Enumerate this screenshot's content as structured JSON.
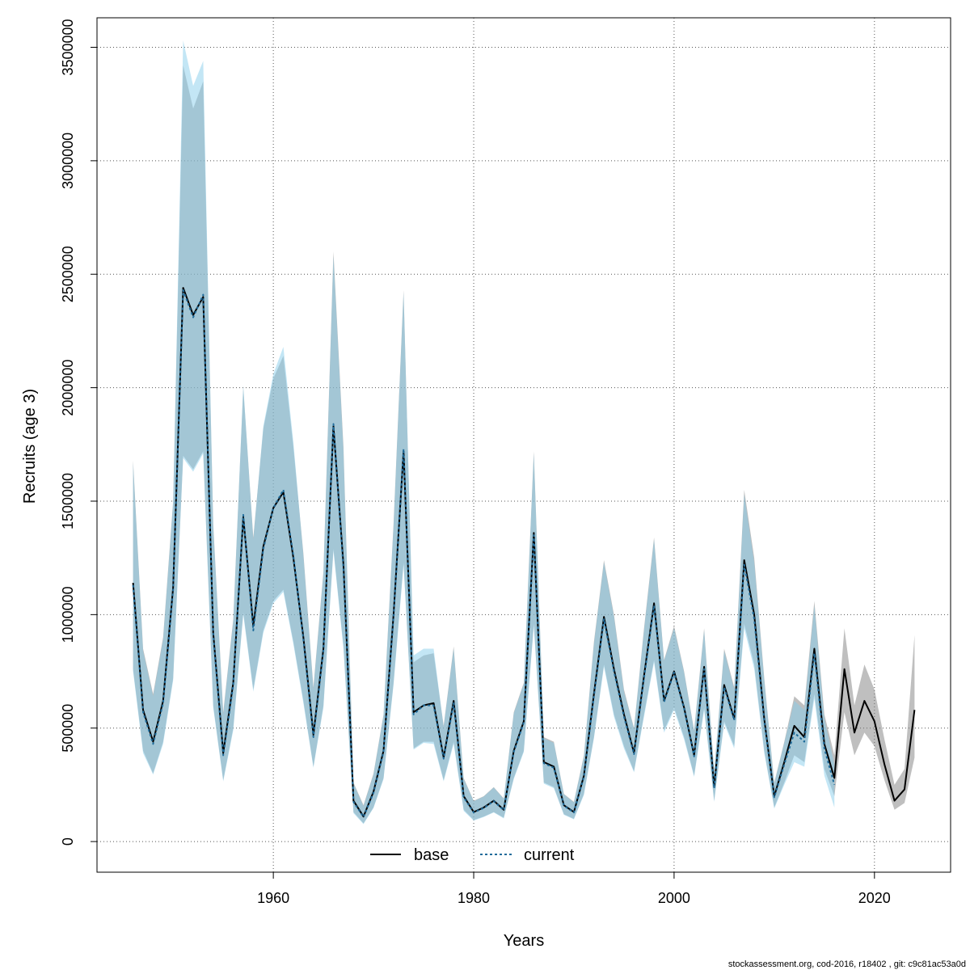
{
  "chart_data": {
    "type": "line",
    "title": "",
    "xlabel": "Years",
    "ylabel": "Recruits (age 3)",
    "xlim": [
      1942.4,
      2027.6
    ],
    "ylim": [
      -135000,
      3630000
    ],
    "x_ticks": [
      1960,
      1980,
      2000,
      2020
    ],
    "x_tick_labels": [
      "1960",
      "1980",
      "2000",
      "2020"
    ],
    "y_ticks": [
      0,
      500000,
      1000000,
      1500000,
      2000000,
      2500000,
      3000000,
      3500000
    ],
    "y_tick_labels": [
      "0",
      "500000",
      "1000000",
      "1500000",
      "2000000",
      "2500000",
      "3000000",
      "3500000"
    ],
    "grid": true,
    "legend_position": "bottom-center",
    "footer": "stockassessment.org, cod-2016, r18402 , git: c9c81ac53a0d",
    "colors": {
      "base_line": "#000000",
      "current_line": "#1f6b9a",
      "base_band": "#7f7f7f",
      "current_band": "#87ceeb"
    },
    "series": [
      {
        "name": "base",
        "x": [
          1946,
          1947,
          1948,
          1949,
          1950,
          1951,
          1952,
          1953,
          1954,
          1955,
          1956,
          1957,
          1958,
          1959,
          1960,
          1961,
          1962,
          1963,
          1964,
          1965,
          1966,
          1967,
          1968,
          1969,
          1970,
          1971,
          1972,
          1973,
          1974,
          1975,
          1976,
          1977,
          1978,
          1979,
          1980,
          1981,
          1982,
          1983,
          1984,
          1985,
          1986,
          1987,
          1988,
          1989,
          1990,
          1991,
          1992,
          1993,
          1994,
          1995,
          1996,
          1997,
          1998,
          1999,
          2000,
          2001,
          2002,
          2003,
          2004,
          2005,
          2006,
          2007,
          2008,
          2009,
          2010,
          2011,
          2012,
          2013,
          2014,
          2015,
          2016,
          2017,
          2018,
          2019,
          2020,
          2021,
          2022,
          2023,
          2024
        ],
        "values": [
          1140000,
          580000,
          440000,
          620000,
          1120000,
          2440000,
          2320000,
          2400000,
          920000,
          390000,
          700000,
          1430000,
          950000,
          1300000,
          1470000,
          1540000,
          1250000,
          900000,
          470000,
          850000,
          1830000,
          1220000,
          180000,
          110000,
          220000,
          400000,
          1000000,
          1720000,
          570000,
          600000,
          610000,
          370000,
          620000,
          200000,
          130000,
          150000,
          180000,
          140000,
          400000,
          530000,
          1360000,
          350000,
          330000,
          160000,
          130000,
          290000,
          650000,
          990000,
          760000,
          560000,
          390000,
          730000,
          1050000,
          620000,
          750000,
          590000,
          380000,
          770000,
          240000,
          690000,
          540000,
          1240000,
          1000000,
          540000,
          200000,
          350000,
          510000,
          460000,
          850000,
          430000,
          280000,
          760000,
          480000,
          620000,
          530000,
          340000,
          180000,
          230000,
          580000
        ],
        "lower": [
          760000,
          400000,
          300000,
          440000,
          720000,
          1700000,
          1640000,
          1720000,
          600000,
          270000,
          500000,
          1010000,
          670000,
          930000,
          1060000,
          1110000,
          880000,
          620000,
          330000,
          600000,
          1290000,
          860000,
          130000,
          80000,
          150000,
          280000,
          700000,
          1230000,
          410000,
          440000,
          440000,
          270000,
          440000,
          140000,
          95000,
          110000,
          130000,
          105000,
          280000,
          400000,
          960000,
          260000,
          240000,
          120000,
          100000,
          210000,
          460000,
          780000,
          560000,
          420000,
          310000,
          560000,
          800000,
          490000,
          590000,
          460000,
          290000,
          590000,
          180000,
          530000,
          420000,
          960000,
          780000,
          400000,
          150000,
          260000,
          380000,
          350000,
          650000,
          320000,
          200000,
          570000,
          380000,
          480000,
          420000,
          270000,
          140000,
          170000,
          370000
        ],
        "upper": [
          1680000,
          850000,
          650000,
          900000,
          1500000,
          3420000,
          3230000,
          3350000,
          1400000,
          570000,
          980000,
          2000000,
          1340000,
          1820000,
          2040000,
          2140000,
          1740000,
          1270000,
          680000,
          1190000,
          2600000,
          1740000,
          260000,
          160000,
          300000,
          560000,
          1400000,
          2430000,
          790000,
          820000,
          830000,
          510000,
          860000,
          280000,
          180000,
          200000,
          240000,
          190000,
          570000,
          700000,
          1720000,
          460000,
          440000,
          210000,
          175000,
          380000,
          880000,
          1240000,
          1000000,
          670000,
          500000,
          940000,
          1340000,
          800000,
          950000,
          750000,
          490000,
          940000,
          310000,
          850000,
          680000,
          1550000,
          1250000,
          720000,
          260000,
          440000,
          640000,
          600000,
          1060000,
          560000,
          380000,
          940000,
          600000,
          780000,
          670000,
          450000,
          250000,
          320000,
          910000
        ]
      },
      {
        "name": "current",
        "x": [
          1946,
          1947,
          1948,
          1949,
          1950,
          1951,
          1952,
          1953,
          1954,
          1955,
          1956,
          1957,
          1958,
          1959,
          1960,
          1961,
          1962,
          1963,
          1964,
          1965,
          1966,
          1967,
          1968,
          1969,
          1970,
          1971,
          1972,
          1973,
          1974,
          1975,
          1976,
          1977,
          1978,
          1979,
          1980,
          1981,
          1982,
          1983,
          1984,
          1985,
          1986,
          1987,
          1988,
          1989,
          1990,
          1991,
          1992,
          1993,
          1994,
          1995,
          1996,
          1997,
          1998,
          1999,
          2000,
          2001,
          2002,
          2003,
          2004,
          2005,
          2006,
          2007,
          2008,
          2009,
          2010,
          2011,
          2012,
          2013,
          2014,
          2015,
          2016
        ],
        "values": [
          1130000,
          570000,
          430000,
          610000,
          1110000,
          2430000,
          2310000,
          2410000,
          910000,
          380000,
          690000,
          1440000,
          930000,
          1290000,
          1470000,
          1550000,
          1260000,
          890000,
          460000,
          840000,
          1840000,
          1200000,
          175000,
          108000,
          215000,
          395000,
          990000,
          1730000,
          560000,
          600000,
          600000,
          365000,
          610000,
          195000,
          128000,
          148000,
          178000,
          138000,
          395000,
          525000,
          1350000,
          345000,
          325000,
          158000,
          128000,
          285000,
          640000,
          980000,
          750000,
          550000,
          385000,
          720000,
          1040000,
          615000,
          745000,
          585000,
          375000,
          760000,
          235000,
          680000,
          535000,
          1220000,
          980000,
          530000,
          195000,
          340000,
          480000,
          440000,
          830000,
          410000,
          250000
        ],
        "lower": [
          750000,
          390000,
          295000,
          430000,
          710000,
          1690000,
          1630000,
          1710000,
          590000,
          265000,
          490000,
          1000000,
          660000,
          920000,
          1050000,
          1100000,
          870000,
          610000,
          325000,
          590000,
          1280000,
          850000,
          125000,
          77000,
          148000,
          275000,
          690000,
          1220000,
          405000,
          435000,
          430000,
          265000,
          430000,
          135000,
          92000,
          108000,
          128000,
          102000,
          275000,
          395000,
          950000,
          255000,
          235000,
          118000,
          98000,
          205000,
          455000,
          770000,
          550000,
          410000,
          305000,
          550000,
          790000,
          480000,
          580000,
          450000,
          285000,
          580000,
          175000,
          520000,
          410000,
          940000,
          760000,
          390000,
          145000,
          250000,
          350000,
          330000,
          630000,
          290000,
          150000
        ],
        "upper": [
          1670000,
          840000,
          640000,
          890000,
          1490000,
          3530000,
          3330000,
          3440000,
          1390000,
          560000,
          970000,
          2010000,
          1330000,
          1830000,
          2060000,
          2180000,
          1760000,
          1260000,
          670000,
          1180000,
          2580000,
          1720000,
          255000,
          155000,
          295000,
          555000,
          1390000,
          2420000,
          820000,
          850000,
          850000,
          505000,
          850000,
          275000,
          178000,
          198000,
          238000,
          188000,
          565000,
          695000,
          1710000,
          455000,
          435000,
          208000,
          172000,
          375000,
          870000,
          1230000,
          990000,
          660000,
          495000,
          930000,
          1330000,
          795000,
          940000,
          745000,
          485000,
          930000,
          305000,
          840000,
          670000,
          1530000,
          1230000,
          710000,
          255000,
          435000,
          620000,
          580000,
          1040000,
          540000,
          340000
        ]
      }
    ]
  }
}
